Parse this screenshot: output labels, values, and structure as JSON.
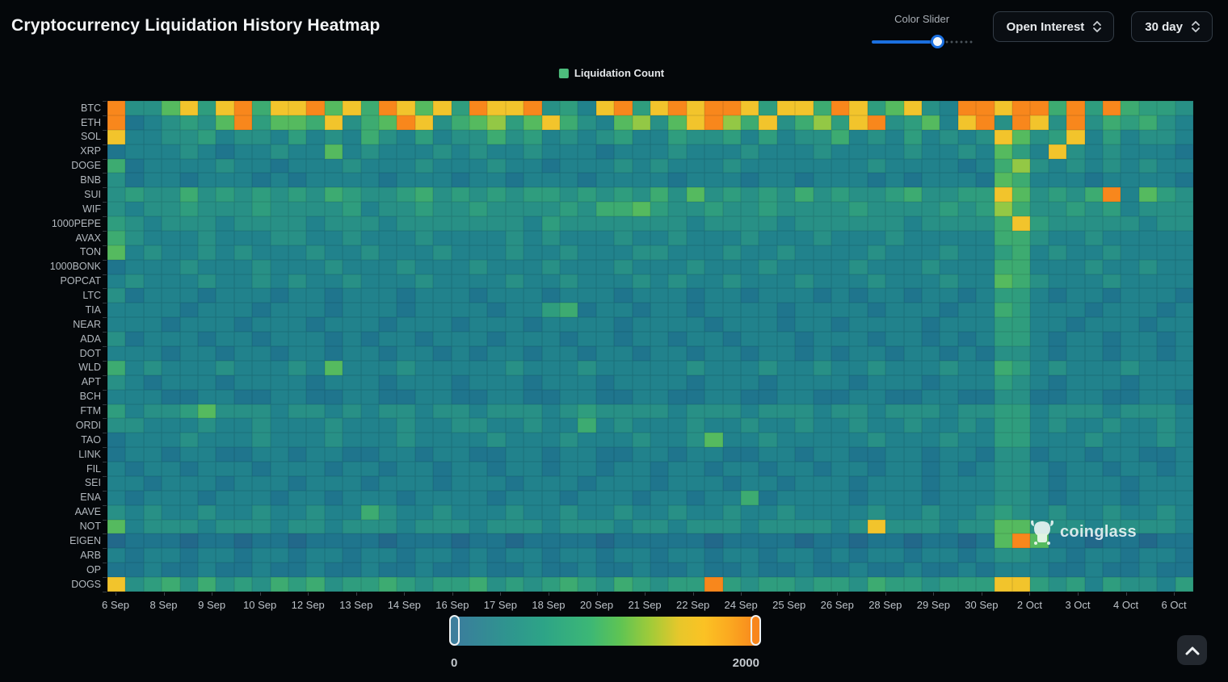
{
  "header": {
    "title": "Cryptocurrency Liquidation History Heatmap"
  },
  "controls": {
    "color_slider_label": "Color Slider",
    "color_slider_value_pct": 66,
    "accent_color": "#1b6fdf",
    "metric_select": "Open Interest",
    "range_select": "30 day"
  },
  "legend": {
    "label": "Liquidation Count",
    "swatch_color": "#4dbd7d"
  },
  "watermark": {
    "text": "coinglass"
  },
  "chart_data": {
    "type": "heatmap",
    "title": "Liquidation Count",
    "x_labels": [
      "6 Sep",
      "8 Sep",
      "9 Sep",
      "10 Sep",
      "12 Sep",
      "13 Sep",
      "14 Sep",
      "16 Sep",
      "17 Sep",
      "18 Sep",
      "20 Sep",
      "21 Sep",
      "22 Sep",
      "24 Sep",
      "25 Sep",
      "26 Sep",
      "28 Sep",
      "29 Sep",
      "30 Sep",
      "2 Oct",
      "3 Oct",
      "4 Oct",
      "6 Oct"
    ],
    "y_labels": [
      "BTC",
      "ETH",
      "SOL",
      "XRP",
      "DOGE",
      "BNB",
      "SUI",
      "WIF",
      "1000PEPE",
      "AVAX",
      "TON",
      "1000BONK",
      "POPCAT",
      "LTC",
      "TIA",
      "NEAR",
      "ADA",
      "DOT",
      "WLD",
      "APT",
      "BCH",
      "FTM",
      "ORDI",
      "TAO",
      "LINK",
      "FIL",
      "SEI",
      "ENA",
      "AAVE",
      "NOT",
      "EIGEN",
      "ARB",
      "OP",
      "DOGS"
    ],
    "columns": 60,
    "value_range": [
      0,
      2000
    ],
    "value_per_digit": 222,
    "palette": [
      "#22688a",
      "#1f758d",
      "#21828c",
      "#289086",
      "#2f9d7e",
      "#3dab71",
      "#55ba5f",
      "#93c845",
      "#f2c42c",
      "#f8871c"
    ],
    "matrix_digits": [
      "933684895889685986849889342894898998488598468329989959495443",
      "912343694665835698356746853267368975835748934628939839354532",
      "822334233242325324233534232342243342423352324232386348242332",
      "122232122322623222323223222122232223222322223223264283232221",
      "512222322122232223222322122232322232222222322221257323232322",
      "312212221212222122212212221222212221221222121222165222122221",
      "343353434343543345343434434343536343435343345334486343592643",
      "323343334333342334334333343556433433433334333343475334342333",
      "432333233332333233333332433333332333323333332333358433333233",
      "532223222332232223222232322232232223222322232222255322322222",
      "623223232223223222322232232223322232232222322232245232232222",
      "122232223222322232223222322232223222322223222322255222322322",
      "232223223232232223222232232223232232223222322232265322232222",
      "312221222122122212221222122212221221222121221221244212212221",
      "222212221222122212222122451221221222212222122212254222122212",
      "222122212221222122212221222212222122212212222122244221222122",
      "312221221222121221222122212212212212221222122121244212212212",
      "222122122122122122121221221221221221221212212212133212212212",
      "523222322232622232222232223222223222322322322232254232223222",
      "321222122221222122212221222122221222122221222122243212221222",
      "222112211221122112211221122112211221122112211221133112211221",
      "423346333233232332332333234333323332333233233323344233323332",
      "332223223222322232233223225232223223223223223223244232232232",
      "122232223222322232222322232223223622322222322232244222322232",
      "122122112212211221221122122112212211221221122122133122122112",
      "212212221222122122122122122122122122122122122121233212212212",
      "221222122212221222122212221222122212212221222122233212221222",
      "212221222122122212222122212221221225122221222122233212221222",
      "323223223223225322322232232232232232232222322322343232232232",
      "623332333233233323332333233323323332333323833323366333233332",
      "011101101101111011101101111011111011110110110110169611011011",
      "212212212212212212212122122122122122122121221221233221221221",
      "112112112112112112112112112112112112112112112112122211211211",
      "834535343545344543445343454354344943443443544344488434243324"
    ],
    "legend": {
      "position": "top-center",
      "label": "Liquidation Count"
    },
    "grid": false,
    "colorbar": {
      "min_label": "0",
      "max_label": "2000",
      "gradient": [
        "#3c7b9e 0%",
        "#2f948f 18%",
        "#2da487 30%",
        "#3cb776 45%",
        "#5fc453 55%",
        "#a3cb38 65%",
        "#e7c72b 74%",
        "#fbc224 82%",
        "#fbaa20 90%",
        "#f8831c 100%"
      ],
      "handle_left_color": "#3e7e9d",
      "handle_right_color": "#f8861c"
    }
  },
  "scroll_top": {
    "tooltip": ""
  }
}
